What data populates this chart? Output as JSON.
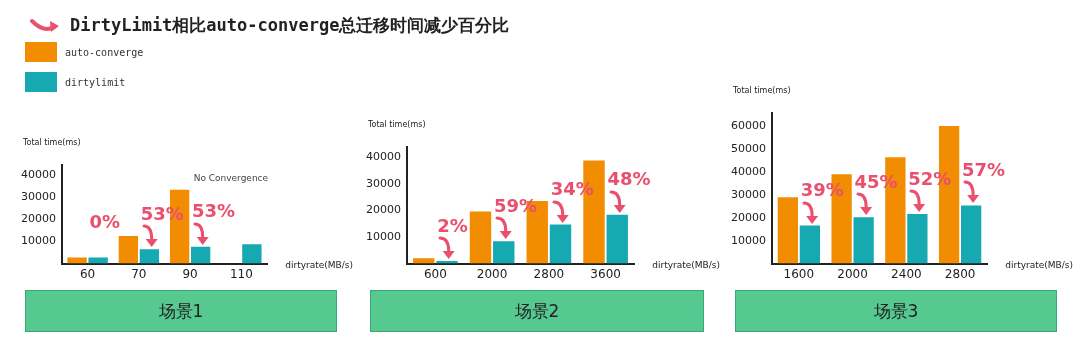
{
  "chart_data": [
    {
      "type": "bar",
      "title": "DirtyLimit相比auto-converge总迁移时间减少百分比",
      "legend": "top left",
      "xlabel": "dirtyrate(MB/s)",
      "ylabel": "Total time(ms)",
      "categories": [
        "60",
        "70",
        "90",
        "110"
      ],
      "ylim": [
        0,
        45000
      ],
      "yticks": [
        10000,
        20000,
        30000,
        40000
      ],
      "series": [
        {
          "name": "auto-converge",
          "color": "#f28c00",
          "values": [
            2800,
            12500,
            33600,
            null
          ]
        },
        {
          "name": "dirtylimit",
          "color": "#16a9b1",
          "values": [
            2800,
            6500,
            7700,
            8800
          ]
        }
      ],
      "annotations": [
        "0%",
        "53%",
        "53%",
        "No Convergence",
        "场景1"
      ]
    },
    {
      "type": "bar",
      "xlabel": "dirtyrate(MB/s)",
      "ylabel": "Total time(ms)",
      "categories": [
        "600",
        "2000",
        "2800",
        "3600"
      ],
      "ylim": [
        0,
        44000
      ],
      "yticks": [
        10000,
        20000,
        30000,
        40000
      ],
      "series": [
        {
          "color": "#f28c00",
          "values": [
            2000,
            19600,
            23500,
            38800
          ]
        },
        {
          "color": "#16a9b1",
          "values": [
            1000,
            8400,
            14700,
            18400
          ]
        }
      ],
      "annotations": [
        "2%",
        "59%",
        "34%",
        "48%",
        "场景2"
      ]
    },
    {
      "type": "bar",
      "xlabel": "dirtyrate(MB/s)",
      "ylabel": "Total time(ms)",
      "categories": [
        "1600",
        "2000",
        "2400",
        "2800"
      ],
      "ylim": [
        0,
        66000
      ],
      "yticks": [
        10000,
        20000,
        30000,
        40000,
        50000,
        60000
      ],
      "series": [
        {
          "color": "#f28c00",
          "values": [
            29000,
            39000,
            46500,
            60100
          ]
        },
        {
          "color": "#16a9b1",
          "values": [
            16600,
            20300,
            21700,
            25400
          ]
        }
      ],
      "annotations": [
        "39%",
        "45%",
        "52%",
        "57%",
        "场景3"
      ]
    }
  ]
}
